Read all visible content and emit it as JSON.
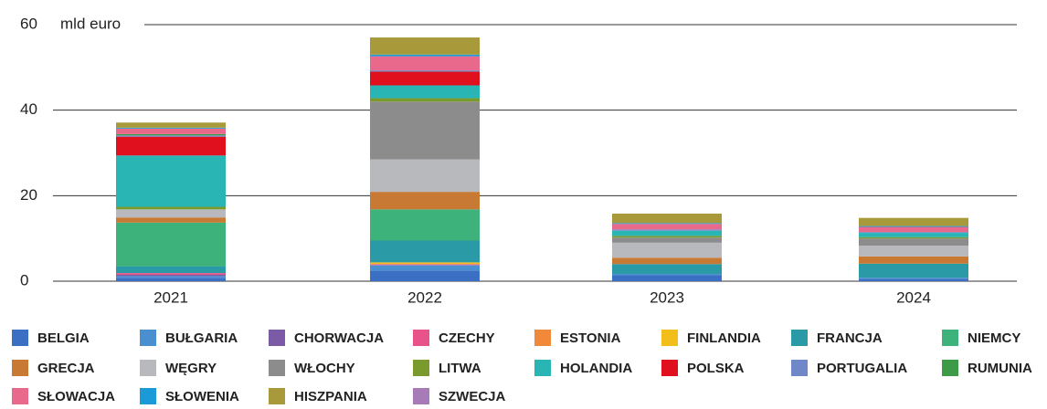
{
  "chart_data": {
    "type": "stacked_bar",
    "y_unit": "mld euro",
    "categories": [
      "2021",
      "2022",
      "2023",
      "2024"
    ],
    "ylim": [
      0,
      60
    ],
    "yticks": [
      0,
      20,
      40,
      60
    ],
    "grid": true,
    "series": [
      {
        "name": "BELGIA",
        "color": "#3a6fc4",
        "values": [
          0.8,
          2.5,
          1.4,
          0.6
        ]
      },
      {
        "name": "BUŁGARIA",
        "color": "#4a90d0",
        "values": [
          0.4,
          1.2,
          0.3,
          0.2
        ]
      },
      {
        "name": "CHORWACJA",
        "color": "#7b5aa6",
        "values": [
          0.3,
          0.1,
          0,
          0
        ]
      },
      {
        "name": "CZECHY",
        "color": "#e8538a",
        "values": [
          0.4,
          0.2,
          0,
          0
        ]
      },
      {
        "name": "ESTONIA",
        "color": "#f08a3a",
        "values": [
          0,
          0,
          0,
          0
        ]
      },
      {
        "name": "FINLANDIA",
        "color": "#f2be1a",
        "values": [
          0,
          0.4,
          0,
          0
        ]
      },
      {
        "name": "FRANCJA",
        "color": "#2a9aa6",
        "values": [
          1.6,
          5.1,
          2.3,
          3.3
        ]
      },
      {
        "name": "NIEMCY",
        "color": "#3db27a",
        "values": [
          10.2,
          7.3,
          0,
          0
        ]
      },
      {
        "name": "GRECJA",
        "color": "#c87a35",
        "values": [
          1.2,
          4.1,
          1.5,
          1.7
        ]
      },
      {
        "name": "WĘGRY",
        "color": "#b7b9bc",
        "values": [
          1.9,
          7.6,
          3.5,
          2.5
        ]
      },
      {
        "name": "WŁOCHY",
        "color": "#8c8c8c",
        "values": [
          0,
          13.5,
          1.2,
          1.7
        ]
      },
      {
        "name": "LITWA",
        "color": "#7a9a2e",
        "values": [
          0.6,
          0.8,
          0.4,
          0.3
        ]
      },
      {
        "name": "HOLANDIA",
        "color": "#2ab5b5",
        "values": [
          12,
          3,
          1.2,
          1
        ]
      },
      {
        "name": "POLSKA",
        "color": "#e0101e",
        "values": [
          4.4,
          3.2,
          0,
          0
        ]
      },
      {
        "name": "PORTUGALIA",
        "color": "#7088c8",
        "values": [
          0.3,
          0.3,
          0.3,
          0.2
        ]
      },
      {
        "name": "RUMUNIA",
        "color": "#3d9b48",
        "values": [
          0.3,
          0,
          0,
          0
        ]
      },
      {
        "name": "SŁOWACJA",
        "color": "#e8698c",
        "values": [
          1.3,
          3.3,
          1.3,
          1.2
        ]
      },
      {
        "name": "SŁOWENIA",
        "color": "#1a9ad6",
        "values": [
          0.2,
          0.4,
          0.2,
          0.2
        ]
      },
      {
        "name": "HISZPANIA",
        "color": "#a89a3a",
        "values": [
          1.2,
          4,
          2.2,
          1.9
        ]
      },
      {
        "name": "SZWECJA",
        "color": "#a77ab8",
        "values": [
          0,
          0,
          0,
          0
        ]
      }
    ]
  }
}
